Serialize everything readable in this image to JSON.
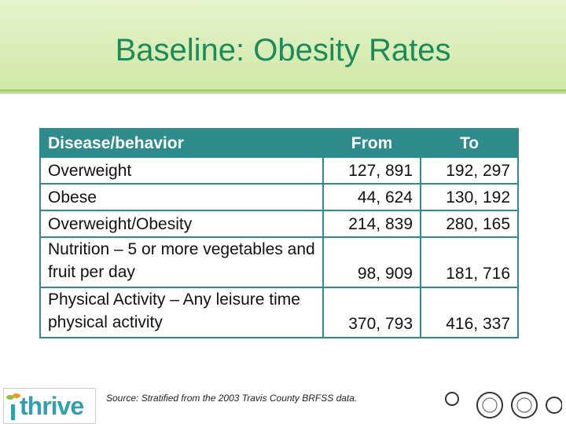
{
  "header": {
    "title": "Baseline: Obesity Rates"
  },
  "table": {
    "columns": [
      "Disease/behavior",
      "From",
      "To"
    ],
    "rows": [
      [
        "Overweight",
        "127, 891",
        "192, 297"
      ],
      [
        "Obese",
        "44, 624",
        "130, 192"
      ],
      [
        "Overweight/Obesity",
        "214, 839",
        "280, 165"
      ],
      [
        "Nutrition – 5 or more vegetables and fruit per day",
        "98, 909",
        "181, 716"
      ],
      [
        "Physical Activity – Any leisure time physical activity",
        "370, 793",
        "416, 337"
      ]
    ]
  },
  "footer": {
    "source": "Source: Stratified from the 2003 Travis County BRFSS data.",
    "logo": "thrive"
  }
}
